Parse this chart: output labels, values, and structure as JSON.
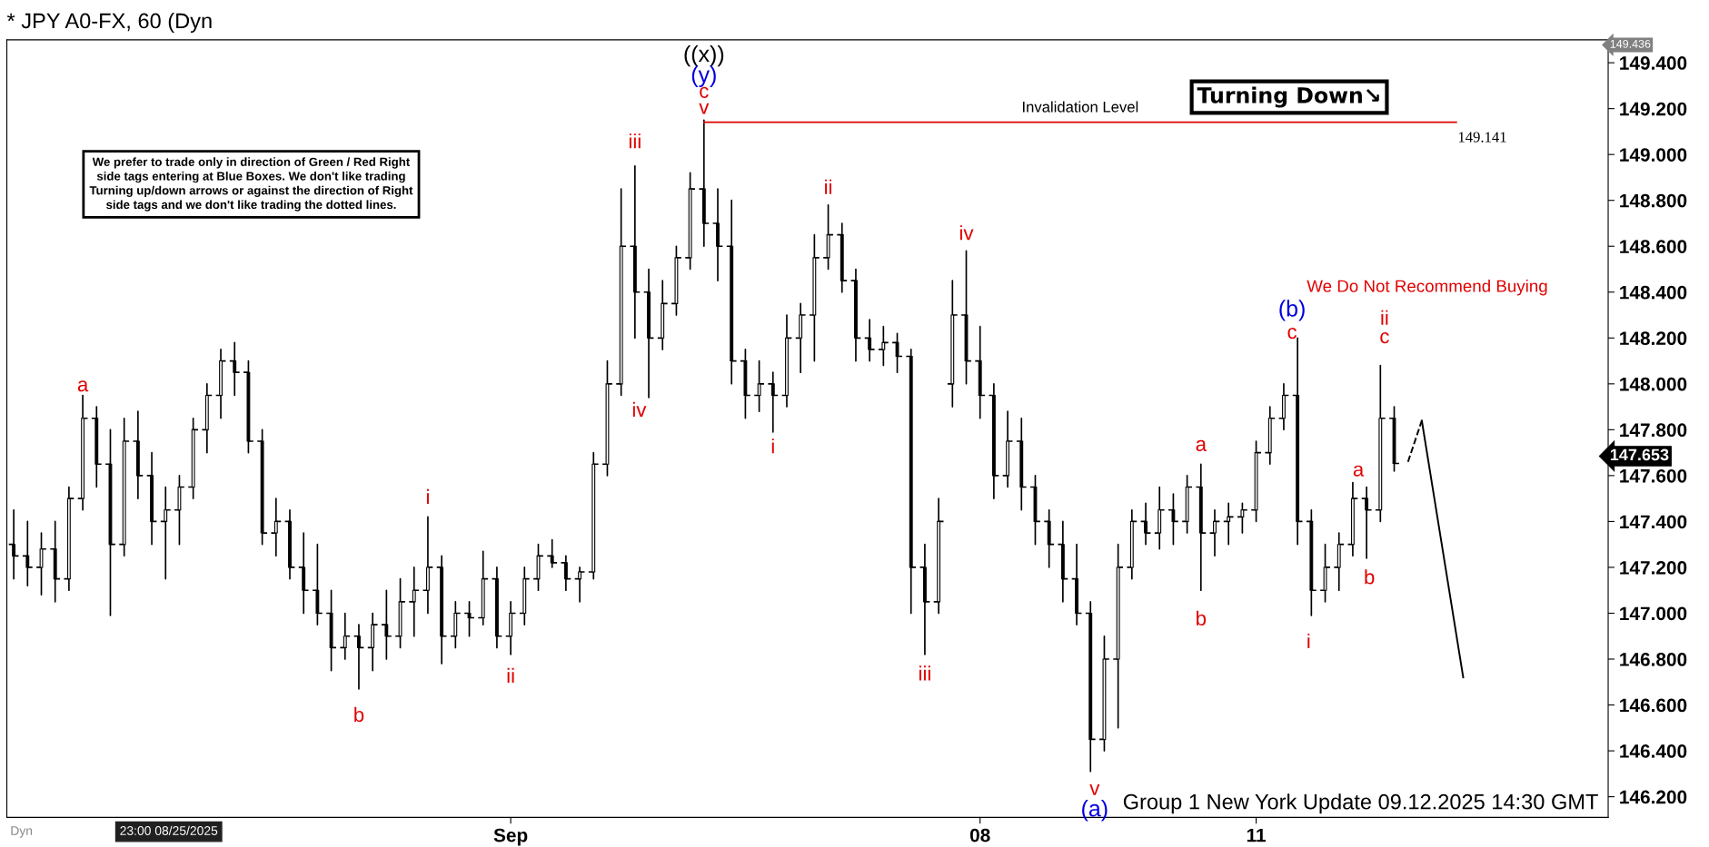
{
  "chart_data": {
    "type": "candlestick",
    "title": "* JPY A0-FX, 60 (Dyn",
    "categories": [
      null,
      null,
      null,
      null,
      null,
      null,
      null,
      null,
      null,
      null,
      null,
      null,
      null,
      null,
      null,
      null,
      null,
      null,
      null,
      null,
      null,
      null,
      null,
      null,
      null,
      null,
      null,
      null,
      null,
      null,
      null,
      null,
      null,
      null,
      null,
      null,
      "Sep",
      null,
      null,
      null,
      null,
      null,
      null,
      null,
      null,
      null,
      null,
      null,
      null,
      null,
      null,
      null,
      null,
      null,
      null,
      null,
      null,
      null,
      null,
      null,
      null,
      null,
      null,
      null,
      null,
      null,
      null,
      null,
      null,
      null,
      "08",
      null,
      null,
      null,
      null,
      null,
      null,
      null,
      null,
      null,
      null,
      null,
      null,
      null,
      null,
      null,
      null,
      null,
      null,
      null,
      "11",
      null,
      null,
      null,
      null,
      null,
      null,
      null,
      null,
      null,
      null,
      null,
      null,
      null,
      null,
      null,
      null,
      null,
      null,
      null,
      null,
      null,
      null,
      null,
      null,
      null
    ],
    "ohlc": [
      [
        147.3,
        147.45,
        147.15,
        147.25
      ],
      [
        147.25,
        147.4,
        147.12,
        147.2
      ],
      [
        147.2,
        147.35,
        147.08,
        147.28
      ],
      [
        147.28,
        147.4,
        147.05,
        147.15
      ],
      [
        147.15,
        147.55,
        147.1,
        147.5
      ],
      [
        147.5,
        147.95,
        147.45,
        147.85
      ],
      [
        147.85,
        147.9,
        147.55,
        147.65
      ],
      [
        147.65,
        147.8,
        146.99,
        147.3
      ],
      [
        147.3,
        147.85,
        147.25,
        147.75
      ],
      [
        147.75,
        147.88,
        147.5,
        147.6
      ],
      [
        147.6,
        147.7,
        147.3,
        147.4
      ],
      [
        147.4,
        147.55,
        147.15,
        147.45
      ],
      [
        147.45,
        147.6,
        147.3,
        147.55
      ],
      [
        147.55,
        147.85,
        147.5,
        147.8
      ],
      [
        147.8,
        148.0,
        147.7,
        147.95
      ],
      [
        147.95,
        148.15,
        147.85,
        148.1
      ],
      [
        148.1,
        148.18,
        147.95,
        148.05
      ],
      [
        148.05,
        148.1,
        147.7,
        147.75
      ],
      [
        147.75,
        147.8,
        147.3,
        147.35
      ],
      [
        147.35,
        147.5,
        147.25,
        147.4
      ],
      [
        147.4,
        147.45,
        147.15,
        147.2
      ],
      [
        147.2,
        147.35,
        147.0,
        147.1
      ],
      [
        147.1,
        147.3,
        146.95,
        147.0
      ],
      [
        147.0,
        147.1,
        146.75,
        146.85
      ],
      [
        146.85,
        147.0,
        146.8,
        146.9
      ],
      [
        146.9,
        146.95,
        146.67,
        146.85
      ],
      [
        146.85,
        147.0,
        146.75,
        146.95
      ],
      [
        146.95,
        147.1,
        146.8,
        146.9
      ],
      [
        146.9,
        147.15,
        146.85,
        147.05
      ],
      [
        147.05,
        147.2,
        146.9,
        147.1
      ],
      [
        147.1,
        147.42,
        147.0,
        147.2
      ],
      [
        147.2,
        147.25,
        146.78,
        146.9
      ],
      [
        146.9,
        147.05,
        146.85,
        147.0
      ],
      [
        147.0,
        147.05,
        146.9,
        146.98
      ],
      [
        146.98,
        147.27,
        146.95,
        147.15
      ],
      [
        147.15,
        147.2,
        146.85,
        146.9
      ],
      [
        146.9,
        147.05,
        146.82,
        147.0
      ],
      [
        147.0,
        147.2,
        146.95,
        147.15
      ],
      [
        147.15,
        147.3,
        147.1,
        147.25
      ],
      [
        147.25,
        147.32,
        147.2,
        147.22
      ],
      [
        147.22,
        147.25,
        147.1,
        147.15
      ],
      [
        147.15,
        147.2,
        147.05,
        147.18
      ],
      [
        147.18,
        147.7,
        147.15,
        147.65
      ],
      [
        147.65,
        148.1,
        147.6,
        148.0
      ],
      [
        148.0,
        148.85,
        147.95,
        148.6
      ],
      [
        148.6,
        148.95,
        148.2,
        148.4
      ],
      [
        148.4,
        148.5,
        147.94,
        148.2
      ],
      [
        148.2,
        148.45,
        148.15,
        148.35
      ],
      [
        148.35,
        148.6,
        148.3,
        148.55
      ],
      [
        148.55,
        148.92,
        148.5,
        148.85
      ],
      [
        148.85,
        149.15,
        148.6,
        148.7
      ],
      [
        148.7,
        148.85,
        148.45,
        148.6
      ],
      [
        148.6,
        148.8,
        148.0,
        148.1
      ],
      [
        148.1,
        148.15,
        147.85,
        147.95
      ],
      [
        147.95,
        148.1,
        147.88,
        148.0
      ],
      [
        148.0,
        148.05,
        147.79,
        147.95
      ],
      [
        147.95,
        148.3,
        147.9,
        148.2
      ],
      [
        148.2,
        148.35,
        148.05,
        148.3
      ],
      [
        148.3,
        148.65,
        148.1,
        148.55
      ],
      [
        148.55,
        148.78,
        148.5,
        148.65
      ],
      [
        148.65,
        148.7,
        148.4,
        148.45
      ],
      [
        148.45,
        148.5,
        148.1,
        148.2
      ],
      [
        148.2,
        148.28,
        148.1,
        148.15
      ],
      [
        148.15,
        148.25,
        148.08,
        148.18
      ],
      [
        148.18,
        148.22,
        148.05,
        148.12
      ],
      [
        148.12,
        148.15,
        147.0,
        147.2
      ],
      [
        147.2,
        147.3,
        146.82,
        147.05
      ],
      [
        147.05,
        147.5,
        147.0,
        147.4
      ],
      [
        148.0,
        148.45,
        147.9,
        148.3
      ],
      [
        148.3,
        148.58,
        148.0,
        148.1
      ],
      [
        148.1,
        148.25,
        147.85,
        147.95
      ],
      [
        147.95,
        148.0,
        147.5,
        147.6
      ],
      [
        147.6,
        147.88,
        147.55,
        147.75
      ],
      [
        147.75,
        147.85,
        147.45,
        147.55
      ],
      [
        147.55,
        147.6,
        147.3,
        147.4
      ],
      [
        147.4,
        147.45,
        147.2,
        147.3
      ],
      [
        147.3,
        147.4,
        147.05,
        147.15
      ],
      [
        147.15,
        147.3,
        146.95,
        147.0
      ],
      [
        147.0,
        147.05,
        146.31,
        146.45
      ],
      [
        146.45,
        146.9,
        146.4,
        146.8
      ],
      [
        146.8,
        147.3,
        146.5,
        147.2
      ],
      [
        147.2,
        147.45,
        147.15,
        147.4
      ],
      [
        147.4,
        147.48,
        147.3,
        147.35
      ],
      [
        147.35,
        147.55,
        147.28,
        147.45
      ],
      [
        147.45,
        147.52,
        147.3,
        147.4
      ],
      [
        147.4,
        147.6,
        147.35,
        147.55
      ],
      [
        147.55,
        147.65,
        147.1,
        147.35
      ],
      [
        147.35,
        147.45,
        147.25,
        147.4
      ],
      [
        147.4,
        147.48,
        147.3,
        147.42
      ],
      [
        147.42,
        147.48,
        147.35,
        147.45
      ],
      [
        147.45,
        147.75,
        147.4,
        147.7
      ],
      [
        147.7,
        147.9,
        147.65,
        147.85
      ],
      [
        147.85,
        148.0,
        147.8,
        147.95
      ],
      [
        147.95,
        148.2,
        147.3,
        147.4
      ],
      [
        147.4,
        147.45,
        146.99,
        147.1
      ],
      [
        147.1,
        147.3,
        147.05,
        147.2
      ],
      [
        147.2,
        147.35,
        147.1,
        147.3
      ],
      [
        147.3,
        147.57,
        147.25,
        147.5
      ],
      [
        147.5,
        147.55,
        147.24,
        147.45
      ],
      [
        147.45,
        148.08,
        147.4,
        147.85
      ],
      [
        147.85,
        147.9,
        147.62,
        147.653
      ],
      null,
      null,
      null,
      null,
      null,
      null,
      null,
      null,
      null,
      null,
      null,
      null,
      null,
      null,
      null
    ],
    "series": [
      {
        "type": "line",
        "color": "#000000",
        "line_style": "dashed",
        "values": [
          null,
          null,
          null,
          null,
          null,
          null,
          null,
          null,
          null,
          null,
          null,
          null,
          null,
          null,
          null,
          null,
          null,
          null,
          null,
          null,
          null,
          null,
          null,
          null,
          null,
          null,
          null,
          null,
          null,
          null,
          null,
          null,
          null,
          null,
          null,
          null,
          null,
          null,
          null,
          null,
          null,
          null,
          null,
          null,
          null,
          null,
          null,
          null,
          null,
          null,
          null,
          null,
          null,
          null,
          null,
          null,
          null,
          null,
          null,
          null,
          null,
          null,
          null,
          null,
          null,
          null,
          null,
          null,
          null,
          null,
          null,
          null,
          null,
          null,
          null,
          null,
          null,
          null,
          null,
          null,
          null,
          null,
          null,
          null,
          null,
          null,
          null,
          null,
          null,
          null,
          null,
          null,
          null,
          null,
          null,
          null,
          null,
          null,
          null,
          null,
          null,
          147.66,
          147.84,
          null,
          null,
          null,
          null,
          null,
          null,
          null,
          null,
          null,
          null,
          null,
          null,
          null
        ]
      },
      {
        "type": "line",
        "color": "#000000",
        "line_style": "solid",
        "values": [
          null,
          null,
          null,
          null,
          null,
          null,
          null,
          null,
          null,
          null,
          null,
          null,
          null,
          null,
          null,
          null,
          null,
          null,
          null,
          null,
          null,
          null,
          null,
          null,
          null,
          null,
          null,
          null,
          null,
          null,
          null,
          null,
          null,
          null,
          null,
          null,
          null,
          null,
          null,
          null,
          null,
          null,
          null,
          null,
          null,
          null,
          null,
          null,
          null,
          null,
          null,
          null,
          null,
          null,
          null,
          null,
          null,
          null,
          null,
          null,
          null,
          null,
          null,
          null,
          null,
          null,
          null,
          null,
          null,
          null,
          null,
          null,
          null,
          null,
          null,
          null,
          null,
          null,
          null,
          null,
          null,
          null,
          null,
          null,
          null,
          null,
          null,
          null,
          null,
          null,
          null,
          null,
          null,
          null,
          null,
          null,
          null,
          null,
          null,
          null,
          null,
          null,
          147.84,
          null,
          null,
          146.72,
          null,
          null,
          null,
          null,
          null,
          null,
          null,
          null,
          null,
          null
        ]
      }
    ],
    "ylim": [
      146.11,
      149.5
    ],
    "yticks": [
      {
        "value": 146.2,
        "label": "146.200"
      },
      {
        "value": 146.4,
        "label": "146.400"
      },
      {
        "value": 146.6,
        "label": "146.600"
      },
      {
        "value": 146.8,
        "label": "146.800"
      },
      {
        "value": 147.0,
        "label": "147.000"
      },
      {
        "value": 147.2,
        "label": "147.200"
      },
      {
        "value": 147.4,
        "label": "147.400"
      },
      {
        "value": 147.6,
        "label": "147.600"
      },
      {
        "value": 147.8,
        "label": "147.800"
      },
      {
        "value": 148.0,
        "label": "148.000"
      },
      {
        "value": 148.2,
        "label": "148.200"
      },
      {
        "value": 148.4,
        "label": "148.400"
      },
      {
        "value": 148.6,
        "label": "148.600"
      },
      {
        "value": 148.8,
        "label": "148.800"
      },
      {
        "value": 149.0,
        "label": "149.000"
      },
      {
        "value": 149.2,
        "label": "149.200"
      },
      {
        "value": 149.4,
        "label": "149.400"
      }
    ],
    "ref_lines": [
      {
        "axis": "y",
        "value": 149.141,
        "label": "Invalidation Level",
        "color": "#e00000"
      }
    ],
    "grid": false,
    "legend": false,
    "annotations": [
      "We prefer to trade only in direction of Green / Red Right\nside tags entering at Blue Boxes. We don't like trading\nTurning up/down arrows or against the direction of Right\nside tags and we don't like trading the dotted lines.",
      "Turning Down↘",
      "We Do Not Recommend Buying",
      "Group 1 New York Update 09.12.2025 14:30 GMT",
      "23:00 08/25/2025",
      "Dyn",
      "a",
      "b",
      "i",
      "ii",
      "iii",
      "iv",
      "((x))",
      "(y)",
      "c",
      "v",
      "i",
      "ii",
      "iii",
      "iv",
      "v",
      "(a)",
      "a",
      "b",
      "(b)",
      "c",
      "i",
      "a",
      "b",
      "ii",
      "c",
      "149.141",
      "149.436",
      "147.653"
    ]
  }
}
